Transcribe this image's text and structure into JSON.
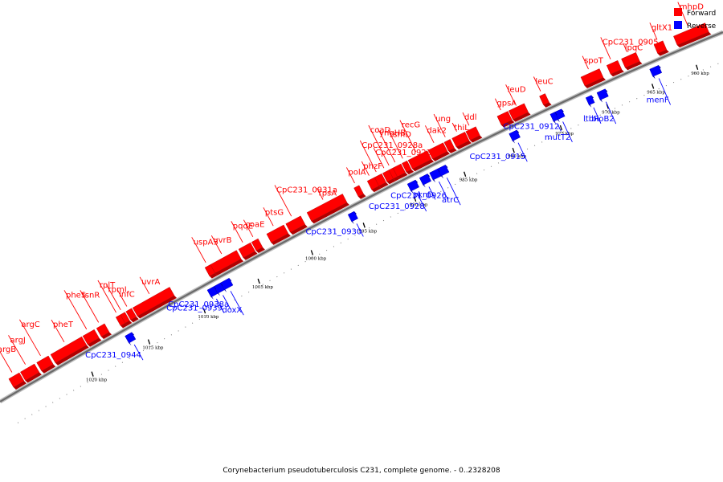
{
  "caption": "Corynebacterium pseudotuberculosis C231, complete genome. - 0..2328208",
  "legend": [
    {
      "label": "Forward",
      "color": "#ff0000"
    },
    {
      "label": "Reverse",
      "color": "#0000ff"
    }
  ],
  "colors": {
    "forward": "#ff0000",
    "forward_dark": "#b00000",
    "reverse": "#0000ff",
    "reverse_dark": "#0000a0",
    "backbone": "#888888"
  },
  "ruler": [
    {
      "label": "960 kbp",
      "pos": 960
    },
    {
      "label": "965 kbp",
      "pos": 965
    },
    {
      "label": "970 kbp",
      "pos": 970
    },
    {
      "label": "975 kbp",
      "pos": 975
    },
    {
      "label": "980 kbp",
      "pos": 980
    },
    {
      "label": "985 kbp",
      "pos": 985
    },
    {
      "label": "990 kbp",
      "pos": 990
    },
    {
      "label": "995 kbp",
      "pos": 995
    },
    {
      "label": "1000 kbp",
      "pos": 1000
    },
    {
      "label": "1005 kbp",
      "pos": 1005
    },
    {
      "label": "1010 kbp",
      "pos": 1010
    },
    {
      "label": "1015 kbp",
      "pos": 1015
    },
    {
      "label": "1020 kbp",
      "pos": 1020
    }
  ],
  "genes": [
    {
      "name": "menF",
      "strand": "reverse",
      "start": 963.6,
      "end": 964.6
    },
    {
      "name": "bioB2",
      "strand": "reverse",
      "start": 969.5,
      "end": 970.4
    },
    {
      "name": "ltbR",
      "strand": "reverse",
      "start": 971.0,
      "end": 971.6
    },
    {
      "name": "mutT2",
      "strand": "reverse",
      "start": 974.2,
      "end": 975.0
    },
    {
      "name": "CpC231_0912",
      "strand": "reverse",
      "start": 974.9,
      "end": 975.4
    },
    {
      "name": "CpC231_0915",
      "strand": "reverse",
      "start": 978.9,
      "end": 979.7
    },
    {
      "name": "atrC",
      "strand": "reverse",
      "start": 986.2,
      "end": 987.0
    },
    {
      "name": "CpC231_0926",
      "strand": "reverse",
      "start": 987.0,
      "end": 987.8
    },
    {
      "name": "pknD",
      "strand": "reverse",
      "start": 988.0,
      "end": 988.8
    },
    {
      "name": "CpC231_0928",
      "strand": "reverse",
      "start": 989.2,
      "end": 990.0
    },
    {
      "name": "CpC231_0930",
      "strand": "reverse",
      "start": 995.2,
      "end": 995.8
    },
    {
      "name": "doxX",
      "strand": "reverse",
      "start": 1007.0,
      "end": 1007.8
    },
    {
      "name": "CpC231_0938a",
      "strand": "reverse",
      "start": 1007.8,
      "end": 1008.4
    },
    {
      "name": "CpC231_0939",
      "strand": "reverse",
      "start": 1008.4,
      "end": 1009.0
    },
    {
      "name": "CpC231_0944",
      "strand": "reverse",
      "start": 1015.8,
      "end": 1016.4
    },
    {
      "name": "mhpD",
      "strand": "forward",
      "start": 957.4,
      "end": 961.0
    },
    {
      "name": "gltX1",
      "strand": "forward",
      "start": 962.2,
      "end": 963.2
    },
    {
      "name": "lpqC",
      "strand": "forward",
      "start": 965.2,
      "end": 966.8
    },
    {
      "name": "CpC231_0905",
      "strand": "forward",
      "start": 967.2,
      "end": 968.4
    },
    {
      "name": "spoT",
      "strand": "forward",
      "start": 969.2,
      "end": 971.2
    },
    {
      "name": "leuC",
      "strand": "forward",
      "start": 975.0,
      "end": 975.6
    },
    {
      "name": "leuD",
      "strand": "forward",
      "start": 977.2,
      "end": 978.8
    },
    {
      "name": "gpsA",
      "strand": "forward",
      "start": 978.9,
      "end": 980.0
    },
    {
      "name": "ddl",
      "strand": "forward",
      "start": 982.2,
      "end": 983.2
    },
    {
      "name": "thiL",
      "strand": "forward",
      "start": 983.3,
      "end": 984.6
    },
    {
      "name": "ung",
      "strand": "forward",
      "start": 984.8,
      "end": 985.4
    },
    {
      "name": "dak2",
      "strand": "forward",
      "start": 985.5,
      "end": 987.0
    },
    {
      "name": "recG",
      "strand": "forward",
      "start": 987.1,
      "end": 989.0
    },
    {
      "name": "rsmD",
      "strand": "forward",
      "start": 989.1,
      "end": 989.6
    },
    {
      "name": "yngHB",
      "strand": "forward",
      "start": 989.7,
      "end": 990.5
    },
    {
      "name": "coaD",
      "strand": "forward",
      "start": 990.5,
      "end": 990.9
    },
    {
      "name": "CpC231_0923",
      "strand": "forward",
      "start": 990.9,
      "end": 991.5
    },
    {
      "name": "CpC231_0928a",
      "strand": "forward",
      "start": 991.6,
      "end": 992.3
    },
    {
      "name": "phzF",
      "strand": "forward",
      "start": 992.3,
      "end": 993.0
    },
    {
      "name": "polA",
      "strand": "forward",
      "start": 993.8,
      "end": 994.3
    },
    {
      "name": "rpsA",
      "strand": "forward",
      "start": 995.4,
      "end": 998.8
    },
    {
      "name": "CpC231_0931a",
      "strand": "forward",
      "start": 999.4,
      "end": 1000.8
    },
    {
      "name": "ptsG",
      "strand": "forward",
      "start": 1001.0,
      "end": 1002.6
    },
    {
      "name": "coaE",
      "strand": "forward",
      "start": 1003.4,
      "end": 1004.0
    },
    {
      "name": "pqqE",
      "strand": "forward",
      "start": 1004.1,
      "end": 1005.2
    },
    {
      "name": "uvrB",
      "strand": "forward",
      "start": 1005.4,
      "end": 1007.8
    },
    {
      "name": "uspA3",
      "strand": "forward",
      "start": 1007.8,
      "end": 1008.3
    },
    {
      "name": "uvrA",
      "strand": "forward",
      "start": 1011.5,
      "end": 1014.8
    },
    {
      "name": "infC",
      "strand": "forward",
      "start": 1014.9,
      "end": 1015.4
    },
    {
      "name": "rpmI",
      "strand": "forward",
      "start": 1015.5,
      "end": 1015.9
    },
    {
      "name": "rplT",
      "strand": "forward",
      "start": 1015.9,
      "end": 1016.3
    },
    {
      "name": "tsnR",
      "strand": "forward",
      "start": 1017.3,
      "end": 1018.0
    },
    {
      "name": "pheS",
      "strand": "forward",
      "start": 1018.2,
      "end": 1019.2
    },
    {
      "name": "pheT",
      "strand": "forward",
      "start": 1019.3,
      "end": 1022.0
    },
    {
      "name": "argC",
      "strand": "forward",
      "start": 1022.2,
      "end": 1023.2
    },
    {
      "name": "argJ",
      "strand": "forward",
      "start": 1023.4,
      "end": 1024.6
    },
    {
      "name": "argB",
      "strand": "forward",
      "start": 1024.7,
      "end": 1025.6
    }
  ]
}
